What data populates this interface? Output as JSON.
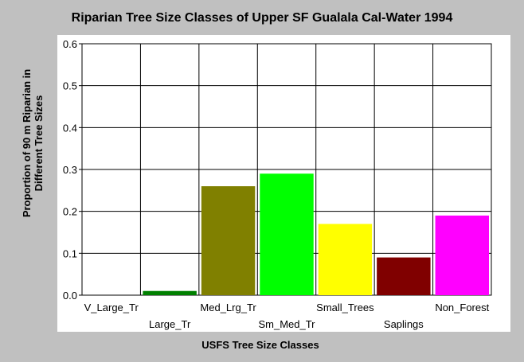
{
  "chart_data": {
    "type": "bar",
    "title": "Riparian Tree Size Classes of Upper SF Gualala Cal-Water 1994",
    "xlabel": "USFS Tree Size Classes",
    "ylabel_lines": [
      "Proportion of 90 m Riparian in",
      "Different Tree Sizes"
    ],
    "categories": [
      "V_Large_Tr",
      "Large_Tr",
      "Med_Lrg_Tr",
      "Sm_Med_Tr",
      "Small_Trees",
      "Saplings",
      "Non_Forest"
    ],
    "values": [
      0.0,
      0.01,
      0.26,
      0.29,
      0.17,
      0.09,
      0.19
    ],
    "colors": [
      "#008000",
      "#008000",
      "#808000",
      "#00ff00",
      "#ffff00",
      "#800000",
      "#ff00ff"
    ],
    "ylim": [
      0,
      0.6
    ],
    "yticks": [
      "0.0",
      "0.1",
      "0.2",
      "0.3",
      "0.4",
      "0.5",
      "0.6"
    ],
    "grid": true,
    "plot_background": "#ffffff",
    "page_background": "#c0c0c0"
  }
}
